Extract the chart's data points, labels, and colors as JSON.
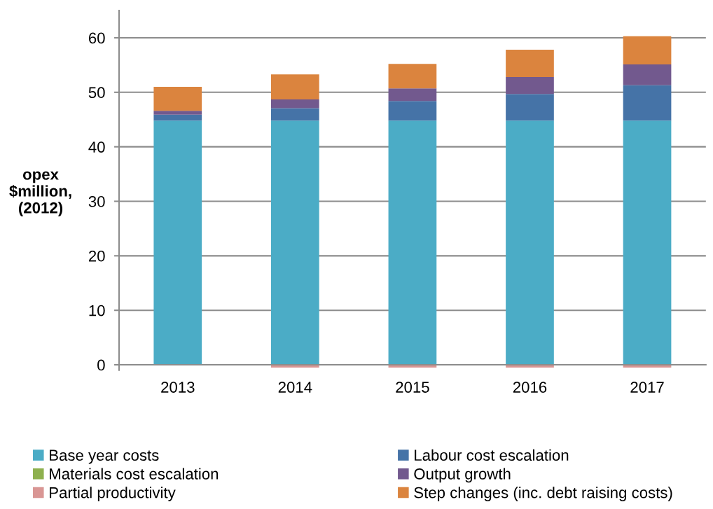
{
  "chart_data": {
    "type": "bar",
    "stacked": true,
    "categories": [
      "2013",
      "2014",
      "2015",
      "2016",
      "2017"
    ],
    "series": [
      {
        "name": "Base year costs",
        "color": "#4bacc6",
        "values": [
          44.8,
          44.8,
          44.8,
          44.8,
          44.8
        ]
      },
      {
        "name": "Labour cost escalation",
        "color": "#4573a7",
        "values": [
          1.1,
          2.3,
          3.6,
          4.9,
          6.5
        ]
      },
      {
        "name": "Materials cost escalation",
        "color": "#8eb04e",
        "values": [
          0,
          0,
          0,
          0,
          0
        ]
      },
      {
        "name": "Output growth",
        "color": "#72598e",
        "values": [
          0.7,
          1.6,
          2.3,
          3.1,
          3.8
        ]
      },
      {
        "name": "Partial productivity",
        "color": "#d99694",
        "values": [
          0,
          -0.5,
          -0.5,
          -0.5,
          -0.5
        ]
      },
      {
        "name": "Step changes (inc. debt raising costs)",
        "color": "#db843e",
        "values": [
          4.4,
          4.6,
          4.5,
          5.0,
          5.2
        ]
      }
    ],
    "ylabel": "opex\n$million,\n(2012)",
    "ylim": [
      -1,
      65
    ],
    "yticks": [
      0,
      10,
      20,
      30,
      40,
      50,
      60
    ],
    "grid": "y",
    "legend": "bottom"
  }
}
